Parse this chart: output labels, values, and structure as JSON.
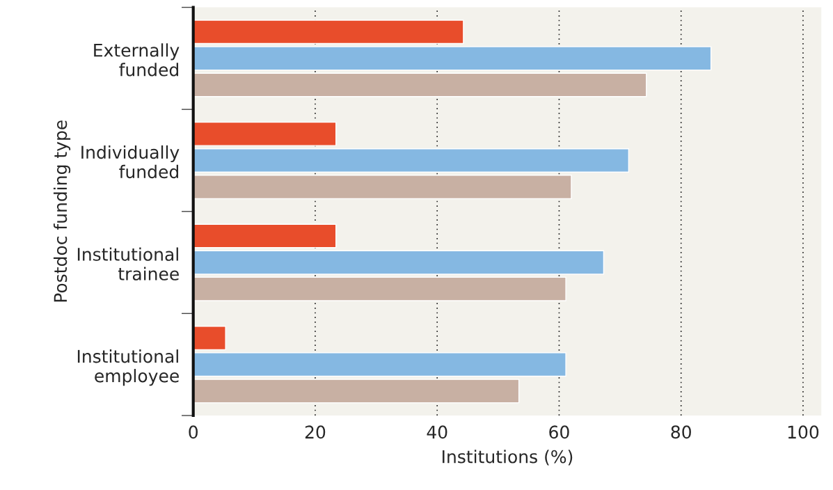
{
  "chart_data": {
    "type": "bar",
    "orientation": "horizontal",
    "xlabel": "Institutions (%)",
    "ylabel": "Postdoc funding type",
    "categories": [
      "Externally\nfunded",
      "Individually\nfunded",
      "Institutional\ntrainee",
      "Institutional\nemployee"
    ],
    "series": [
      {
        "color": "#e84d2b",
        "values": [
          44.3,
          23.4,
          23.4,
          5.3
        ]
      },
      {
        "color": "#85b8e2",
        "values": [
          84.9,
          71.4,
          67.3,
          61.1
        ]
      },
      {
        "color": "#c8b0a3",
        "values": [
          74.3,
          62.0,
          61.1,
          53.4
        ]
      }
    ],
    "xlim": [
      0,
      103
    ],
    "xticks": [
      0,
      20,
      40,
      60,
      80,
      100
    ],
    "grid": "x"
  }
}
